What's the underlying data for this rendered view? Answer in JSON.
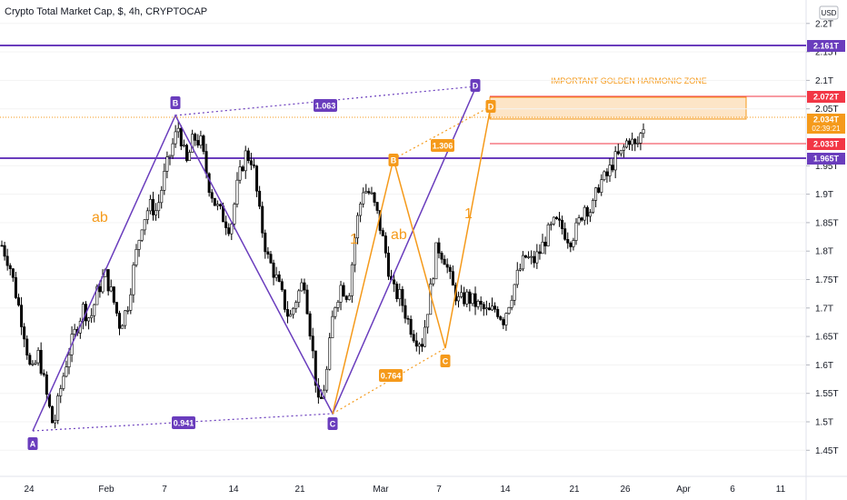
{
  "header": {
    "title": "Crypto Total Market Cap, $, 4h, CRYPTOCAP"
  },
  "currency_button": "USD",
  "colors": {
    "up": "#4caf50",
    "candle": "#000000",
    "purple": "#6a3dbd",
    "orange": "#f59a1b",
    "red": "#f23645",
    "zone_fill": "#fde5c7",
    "zone_border": "#f59a1b"
  },
  "annotations": {
    "zone_label": "IMPORTANT GOLDEN HARMONIC ZONE"
  },
  "chart_data": {
    "type": "candlestick",
    "title": "Crypto Total Market Cap, $, 4h, CRYPTOCAP",
    "ylim": [
      1.42,
      2.22
    ],
    "x_ticks": [
      "24",
      "Feb",
      "7",
      "14",
      "21",
      "Mar",
      "7",
      "14",
      "21",
      "26",
      "Apr",
      "6",
      "11"
    ],
    "y_ticks": [
      "2.2T",
      "2.15T",
      "2.1T",
      "2.05T",
      "1.95T",
      "1.9T",
      "1.85T",
      "1.8T",
      "1.75T",
      "1.7T",
      "1.65T",
      "1.6T",
      "1.55T",
      "1.5T",
      "1.45T"
    ],
    "price_path": [
      1.81,
      1.78,
      1.72,
      1.66,
      1.58,
      1.62,
      1.55,
      1.49,
      1.56,
      1.62,
      1.66,
      1.7,
      1.68,
      1.73,
      1.76,
      1.72,
      1.67,
      1.7,
      1.78,
      1.85,
      1.88,
      1.87,
      1.93,
      1.98,
      2.02,
      1.95,
      2.0,
      1.99,
      1.92,
      1.88,
      1.86,
      1.84,
      1.92,
      1.97,
      1.96,
      1.86,
      1.79,
      1.76,
      1.72,
      1.68,
      1.72,
      1.75,
      1.64,
      1.52,
      1.58,
      1.7,
      1.74,
      1.72,
      1.84,
      1.91,
      1.9,
      1.86,
      1.8,
      1.73,
      1.72,
      1.68,
      1.65,
      1.64,
      1.72,
      1.81,
      1.79,
      1.74,
      1.71,
      1.72,
      1.71,
      1.7,
      1.69,
      1.7,
      1.68,
      1.72,
      1.76,
      1.79,
      1.78,
      1.8,
      1.83,
      1.85,
      1.84,
      1.82,
      1.84,
      1.88,
      1.87,
      1.92,
      1.93,
      1.96,
      1.97,
      2.0,
      1.98,
      2.02
    ],
    "horizontal_levels": [
      {
        "price": 2.161,
        "label": "2.161T",
        "color": "#6a3dbd",
        "label_bg": "#6a3dbd"
      },
      {
        "price": 2.072,
        "label": "2.072T",
        "color": "#f23645",
        "label_bg": "#f23645"
      },
      {
        "price": 2.034,
        "label": "2.034T",
        "color": "#f59a1b",
        "label_bg": "#f59a1b",
        "sublabel": "02:39:21"
      },
      {
        "price": 2.033,
        "label": "2.033T",
        "color": "#f23645",
        "label_bg": "#f23645"
      },
      {
        "price": 1.965,
        "label": "1.965T",
        "color": "#6a3dbd",
        "label_bg": "#6a3dbd"
      }
    ],
    "patterns": [
      {
        "name": "purple-xabcd",
        "color": "#6a3dbd",
        "points": [
          {
            "label": "A",
            "price": 1.495
          },
          {
            "label": "B",
            "price": 2.04
          },
          {
            "label": "C",
            "price": 1.515
          },
          {
            "label": "D",
            "price": 2.11
          }
        ],
        "ratios": [
          {
            "label": "1.063"
          },
          {
            "label": "0.941"
          }
        ],
        "text_labels": [
          "ab"
        ]
      },
      {
        "name": "orange-abcd",
        "color": "#f59a1b",
        "points": [
          {
            "label": "C",
            "price": 1.515
          },
          {
            "label": "B",
            "price": 1.935
          },
          {
            "label": "C",
            "price": 1.63
          },
          {
            "label": "D",
            "price": 2.04
          }
        ],
        "ratios": [
          {
            "label": "1.306"
          },
          {
            "label": "0.764"
          }
        ],
        "text_labels": [
          "1",
          "ab",
          "1",
          "ab"
        ]
      }
    ]
  }
}
